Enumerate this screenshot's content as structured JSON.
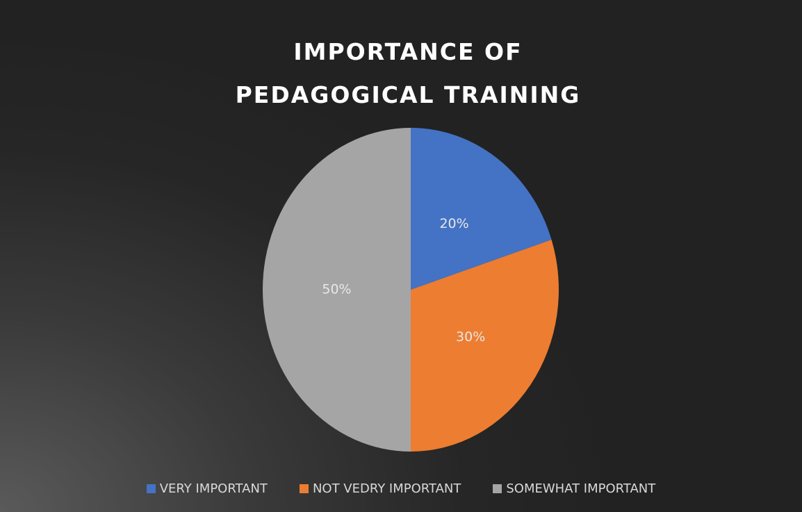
{
  "chart_data": {
    "type": "pie",
    "title": "IMPORTANCE OF PEDAGOGICAL TRAINING",
    "categories": [
      "VERY IMPORTANT",
      "NOT VEDRY IMPORTANT",
      "SOMEWHAT IMPORTANT"
    ],
    "values": [
      20,
      30,
      50
    ],
    "value_labels": [
      "20%",
      "30%",
      "50%"
    ],
    "colors": [
      "#4472c4",
      "#ed7d31",
      "#a5a5a5"
    ],
    "legend": "bottom"
  }
}
